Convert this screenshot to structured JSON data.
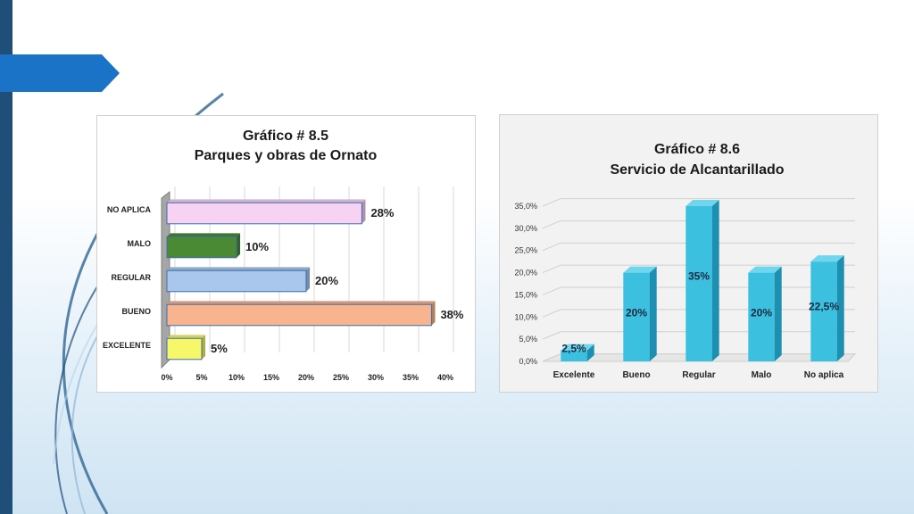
{
  "colors": {
    "sidebar": "#1f4e79",
    "accent_arrow": "#1a73c7",
    "bar_cyan": "#3cc0e0"
  },
  "chart_data": [
    {
      "type": "bar",
      "orientation": "horizontal",
      "title": "Gráfico # 8.5",
      "subtitle": "Parques y obras de Ornato",
      "categories": [
        "NO APLICA",
        "MALO",
        "REGULAR",
        "BUENO",
        "EXCELENTE"
      ],
      "values": [
        28,
        10,
        20,
        38,
        5
      ],
      "value_labels": [
        "28%",
        "10%",
        "20%",
        "38%",
        "5%"
      ],
      "bar_colors": [
        "#f7d2f3",
        "#4a8a35",
        "#a9c7ec",
        "#f8b48f",
        "#f7f76a"
      ],
      "xlim": [
        0,
        40
      ],
      "x_ticks": [
        "0%",
        "5%",
        "10%",
        "15%",
        "20%",
        "25%",
        "30%",
        "35%",
        "40%"
      ],
      "grid": true,
      "legend": "none"
    },
    {
      "type": "bar",
      "orientation": "vertical",
      "title": "Gráfico # 8.6",
      "subtitle": "Servicio de Alcantarillado",
      "categories": [
        "Excelente",
        "Bueno",
        "Regular",
        "Malo",
        "No aplica"
      ],
      "values": [
        2.5,
        20,
        35,
        20,
        22.5
      ],
      "value_labels": [
        "2,5%",
        "20%",
        "35%",
        "20%",
        "22,5%"
      ],
      "ylim": [
        0,
        35
      ],
      "y_ticks": [
        "0,0%",
        "5,0%",
        "10,0%",
        "15,0%",
        "20,0%",
        "25,0%",
        "30,0%",
        "35,0%"
      ],
      "grid": true,
      "legend": "none"
    }
  ]
}
